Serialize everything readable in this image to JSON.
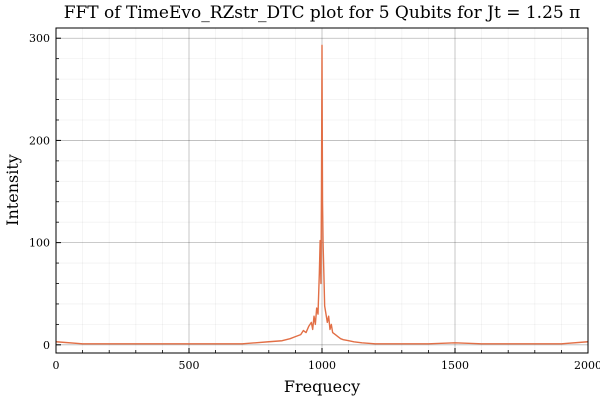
{
  "chart_data": {
    "type": "line",
    "title": "FFT of TimeEvo_RZstr_DTC plot for 5 Qubits for Jt = 1.25 π",
    "xlabel": "Frequecy",
    "ylabel": "Intensity",
    "xlim": [
      0,
      2000
    ],
    "ylim": [
      -8,
      310
    ],
    "xticks": [
      0,
      500,
      1000,
      1500,
      2000
    ],
    "yticks": [
      0,
      100,
      200,
      300
    ],
    "xtick_labels": [
      "0",
      "500",
      "1000",
      "1500",
      "2000"
    ],
    "ytick_labels": [
      "0",
      "100",
      "200",
      "300"
    ],
    "grid": true,
    "minor_grid": true,
    "legend": false,
    "line_color": "#E26F46",
    "series": [
      {
        "peak_x": 1000,
        "peak_y": 293,
        "x": [
          0,
          100,
          200,
          300,
          400,
          500,
          600,
          700,
          750,
          800,
          850,
          880,
          900,
          920,
          930,
          940,
          950,
          960,
          965,
          970,
          975,
          980,
          985,
          990,
          993,
          996,
          998,
          999,
          1000,
          1001,
          1002,
          1004,
          1007,
          1010,
          1015,
          1020,
          1025,
          1030,
          1035,
          1040,
          1050,
          1060,
          1070,
          1080,
          1100,
          1120,
          1150,
          1200,
          1250,
          1300,
          1400,
          1500,
          1600,
          1700,
          1800,
          1900,
          2000
        ],
        "y": [
          3,
          1,
          1,
          1,
          1,
          1,
          1,
          1,
          2,
          3,
          4,
          6,
          8,
          10,
          14,
          12,
          18,
          22,
          15,
          28,
          20,
          36,
          30,
          70,
          102,
          60,
          150,
          220,
          293,
          210,
          140,
          100,
          70,
          38,
          30,
          22,
          28,
          15,
          20,
          12,
          10,
          8,
          6,
          5,
          4,
          3,
          2,
          1,
          1,
          1,
          1,
          2,
          1,
          1,
          1,
          1,
          3
        ]
      }
    ]
  }
}
